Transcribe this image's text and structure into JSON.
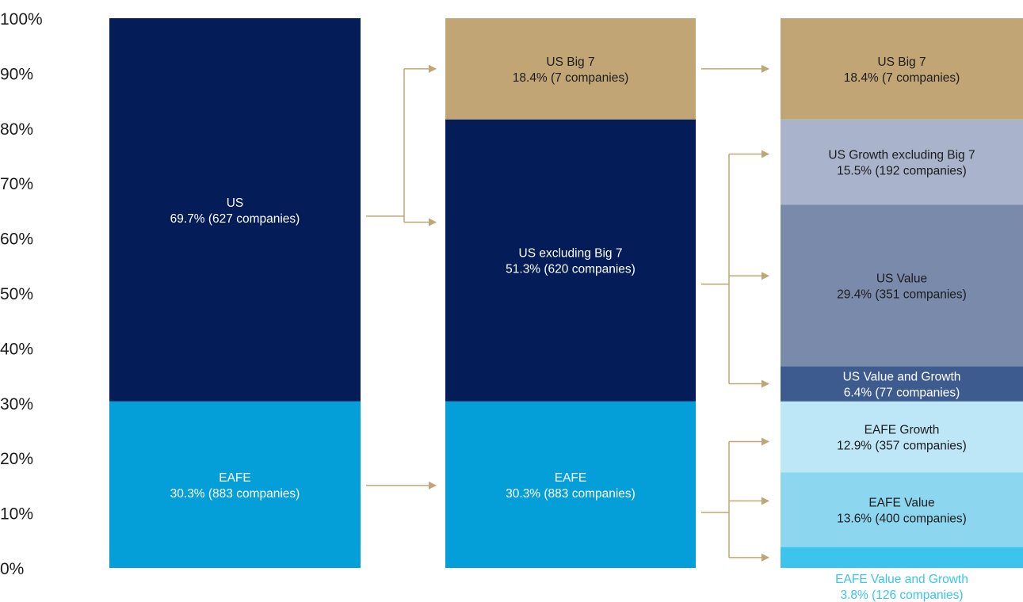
{
  "chart_data": {
    "type": "bar",
    "stacked": true,
    "yticks": [
      "0%",
      "10%",
      "20%",
      "30%",
      "40%",
      "50%",
      "60%",
      "70%",
      "80%",
      "90%",
      "100%"
    ],
    "ylim": [
      0,
      100
    ],
    "grid": false,
    "legend": "none",
    "columns": [
      {
        "segments": [
          {
            "name": "EAFE",
            "label": "30.3% (883 companies)",
            "value": 30.3,
            "color": "#049fd9",
            "text_color": "#ffffff"
          },
          {
            "name": "US",
            "label": "69.7% (627 companies)",
            "value": 69.7,
            "color": "#041c58",
            "text_color": "#ffffff"
          }
        ]
      },
      {
        "segments": [
          {
            "name": "EAFE",
            "label": "30.3% (883 companies)",
            "value": 30.3,
            "color": "#049fd9",
            "text_color": "#ffffff"
          },
          {
            "name": "US excluding Big 7",
            "label": "51.3% (620 companies)",
            "value": 51.3,
            "color": "#041c58",
            "text_color": "#ffffff"
          },
          {
            "name": "US Big 7",
            "label": "18.4% (7 companies)",
            "value": 18.4,
            "color": "#c2a574",
            "text_color": "#1c1c1c"
          }
        ]
      },
      {
        "segments": [
          {
            "name": "EAFE Value and Growth",
            "label": "3.8% (126 companies)",
            "value": 3.8,
            "color": "#3cc4ec",
            "text_color": "#3cc4ec",
            "label_below": true
          },
          {
            "name": "EAFE Value",
            "label": "13.6% (400 companies)",
            "value": 13.6,
            "color": "#8cd6f0",
            "text_color": "#1c1c1c"
          },
          {
            "name": "EAFE Growth",
            "label": "12.9% (357 companies)",
            "value": 12.9,
            "color": "#bde6f6",
            "text_color": "#1c1c1c"
          },
          {
            "name": "US Value and Growth",
            "label": "6.4% (77 companies)",
            "value": 6.4,
            "color": "#3d5b8f",
            "text_color": "#ffffff"
          },
          {
            "name": "US Value",
            "label": "29.4% (351 companies)",
            "value": 29.4,
            "color": "#7a8aab",
            "text_color": "#1c1c1c"
          },
          {
            "name": "US Growth excluding Big 7",
            "label": "15.5% (192 companies)",
            "value": 15.5,
            "color": "#a9b3cb",
            "text_color": "#1c1c1c"
          },
          {
            "name": "US Big 7",
            "label": "18.4% (7 companies)",
            "value": 18.4,
            "color": "#c2a574",
            "text_color": "#1c1c1c"
          }
        ]
      }
    ],
    "connectors": [
      {
        "from": "US",
        "to": [
          "US Big 7",
          "US excluding Big 7"
        ]
      },
      {
        "from": "EAFE",
        "to": [
          "EAFE"
        ]
      },
      {
        "from": "US Big 7",
        "to": [
          "US Big 7"
        ]
      },
      {
        "from": "US excluding Big 7",
        "to": [
          "US Growth excluding Big 7",
          "US Value",
          "US Value and Growth"
        ]
      },
      {
        "from": "EAFE",
        "to": [
          "EAFE Growth",
          "EAFE Value",
          "EAFE Value and Growth"
        ]
      }
    ],
    "connector_color": "#c2a574"
  }
}
